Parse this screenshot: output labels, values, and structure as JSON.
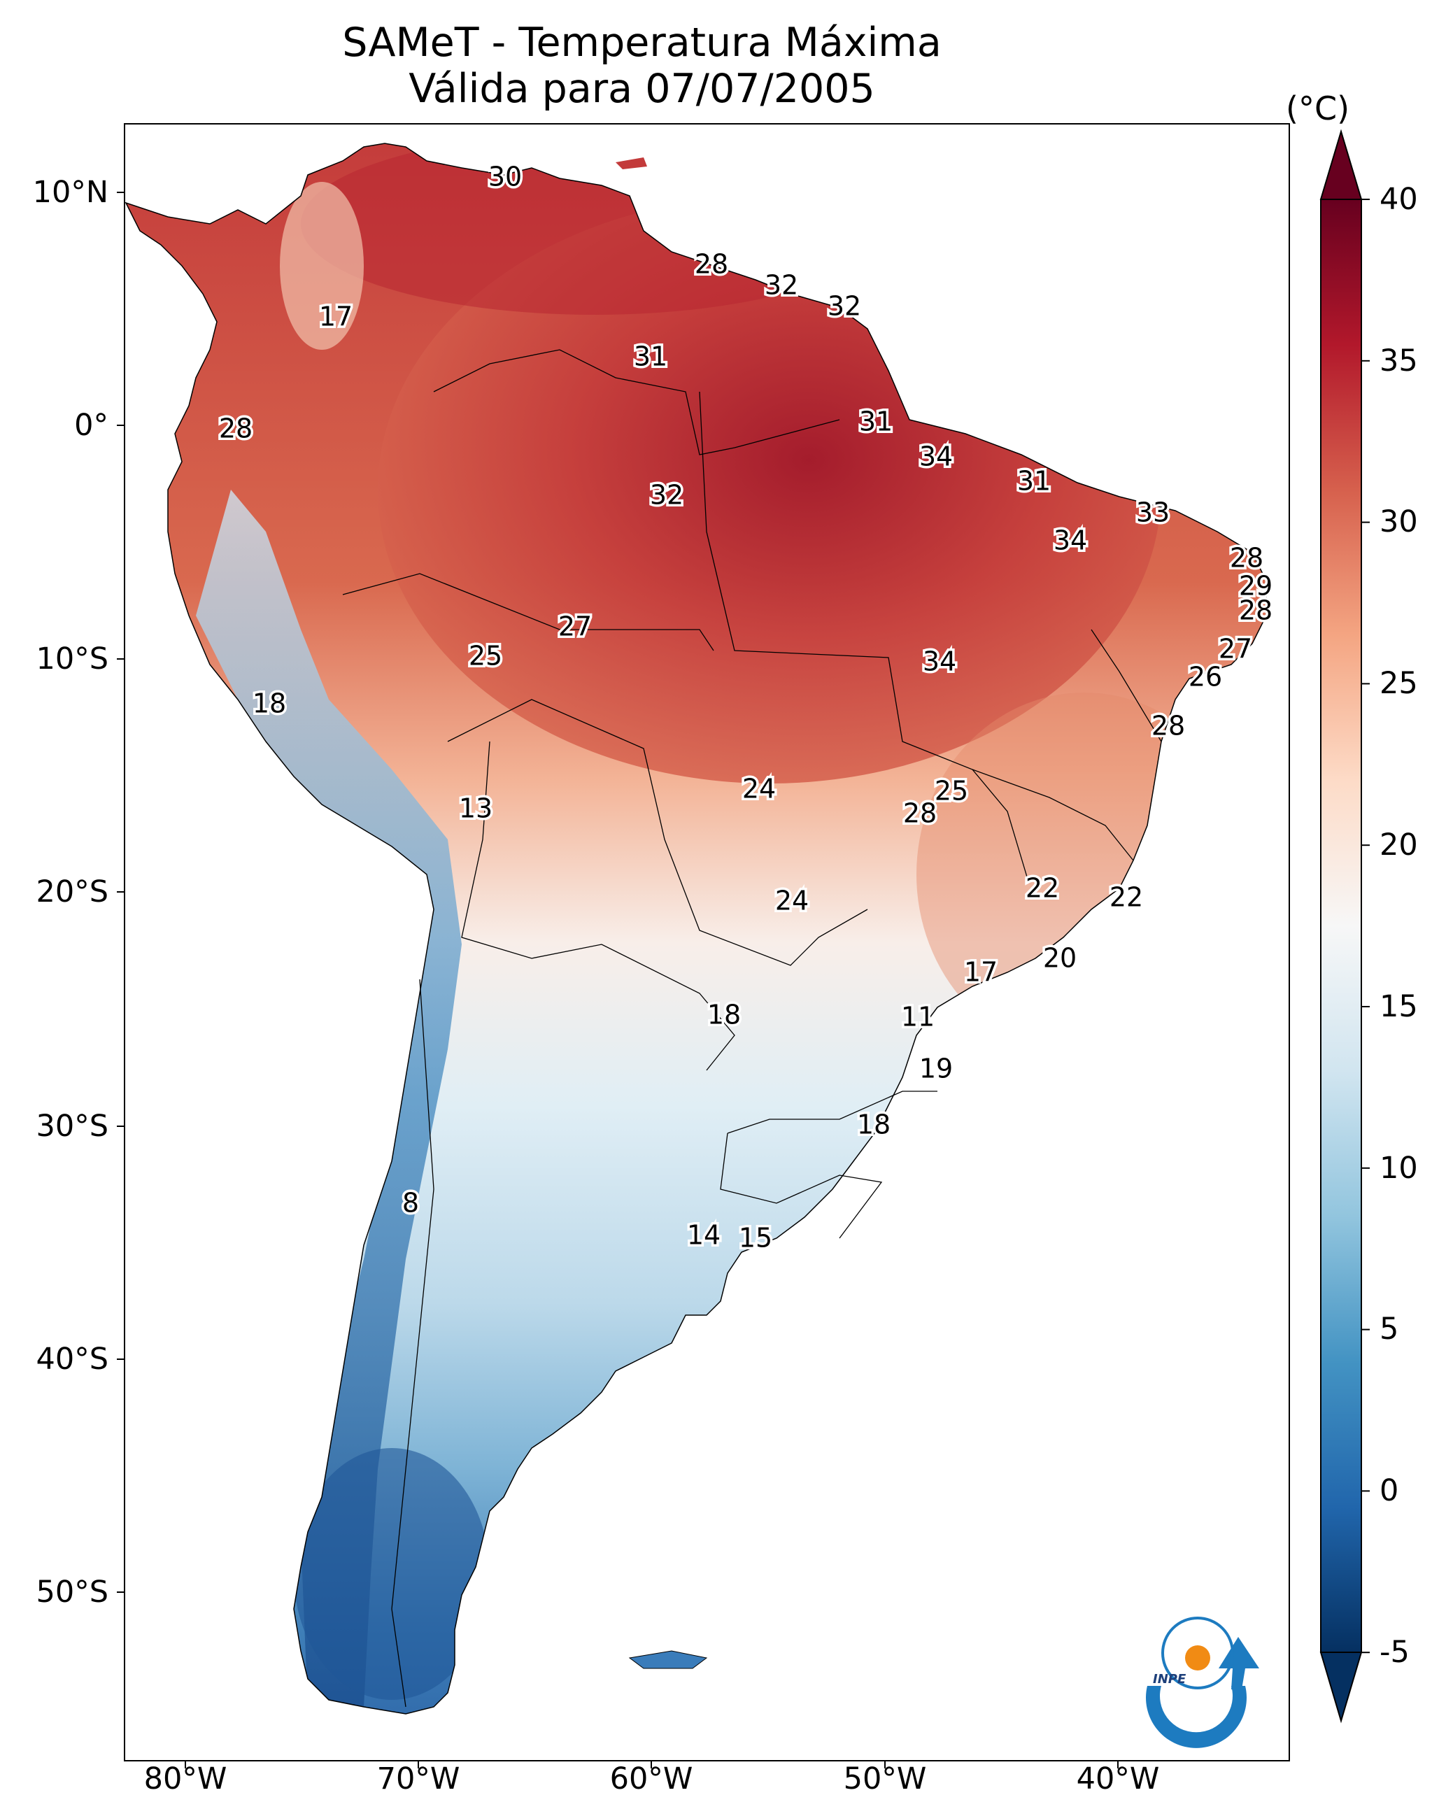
{
  "title": "SAMeT - Temperatura Máxima",
  "subtitle": "Válida para 07/07/2005",
  "colorbar": {
    "unit": "(°C)",
    "ticks": [
      "40",
      "35",
      "30",
      "25",
      "20",
      "15",
      "10",
      "5",
      "0",
      "-5"
    ],
    "colors": [
      "#67001f",
      "#b2182b",
      "#d6604d",
      "#f4a582",
      "#fddbc7",
      "#f7f7f7",
      "#d1e5f0",
      "#92c5de",
      "#4393c3",
      "#2166ac",
      "#053061"
    ]
  },
  "axes": {
    "lon_labels": [
      "80°W",
      "70°W",
      "60°W",
      "50°W",
      "40°W"
    ],
    "lat_labels": [
      "10°N",
      "0°",
      "10°S",
      "20°S",
      "30°S",
      "40°S",
      "50°S"
    ]
  },
  "logo": {
    "text": "INPE",
    "icon": "inpe-logo-icon"
  },
  "temperature_labels": [
    "30",
    "28",
    "32",
    "32",
    "17",
    "31",
    "28",
    "31",
    "34",
    "32",
    "31",
    "33",
    "34",
    "28",
    "29",
    "28",
    "27",
    "25",
    "27",
    "34",
    "18",
    "26",
    "28",
    "25",
    "24",
    "13",
    "28",
    "22",
    "22",
    "24",
    "20",
    "17",
    "18",
    "11",
    "19",
    "18",
    "8",
    "14",
    "15"
  ]
}
